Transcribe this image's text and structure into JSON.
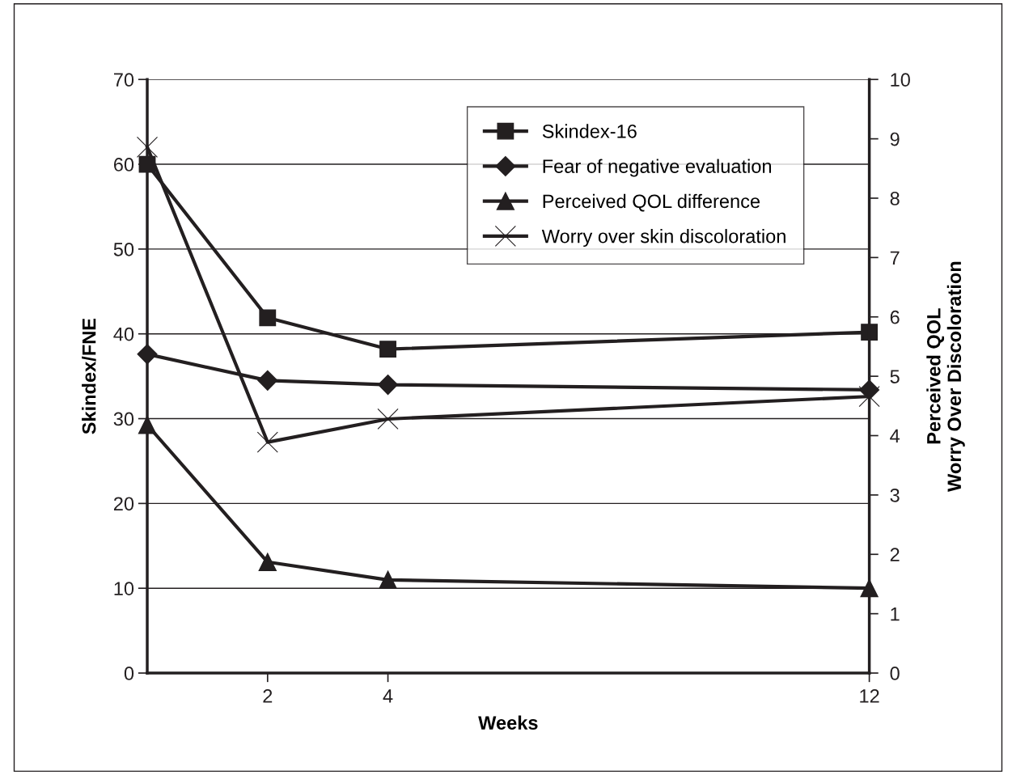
{
  "chart_data": {
    "type": "line",
    "xlabel": "Weeks",
    "ylabel": "Skindex/FNE",
    "y2label": "Perceived QOL\nWorry Over Discoloration",
    "x": [
      0,
      2,
      4,
      12
    ],
    "xlim": [
      0,
      12
    ],
    "xticks": [
      2,
      4,
      12
    ],
    "ylim": [
      0,
      70
    ],
    "yticks": [
      0,
      10,
      20,
      30,
      40,
      50,
      60,
      70
    ],
    "y2lim": [
      0,
      10
    ],
    "y2ticks": [
      0,
      1,
      2,
      3,
      4,
      5,
      6,
      7,
      8,
      9,
      10
    ],
    "grid": "y",
    "legend": "top",
    "line_style": "solid",
    "series": [
      {
        "name": "Skindex-16",
        "color": "#231f20",
        "marker": "square",
        "values": [
          60.0,
          41.9,
          38.2,
          40.2
        ]
      },
      {
        "name": "Fear of negative evaluation",
        "color": "#231f20",
        "marker": "diamond",
        "values": [
          37.6,
          34.5,
          34.0,
          33.4
        ]
      },
      {
        "name": "Perceived QOL difference",
        "color": "#231f20",
        "marker": "triangle",
        "axis": "y2",
        "values": [
          4.18,
          1.87,
          1.57,
          1.43
        ]
      },
      {
        "name": "Worry over skin discoloration",
        "color": "#231f20",
        "marker": "cross",
        "axis": "y2",
        "values": [
          8.86,
          3.89,
          4.28,
          4.66
        ]
      }
    ]
  }
}
